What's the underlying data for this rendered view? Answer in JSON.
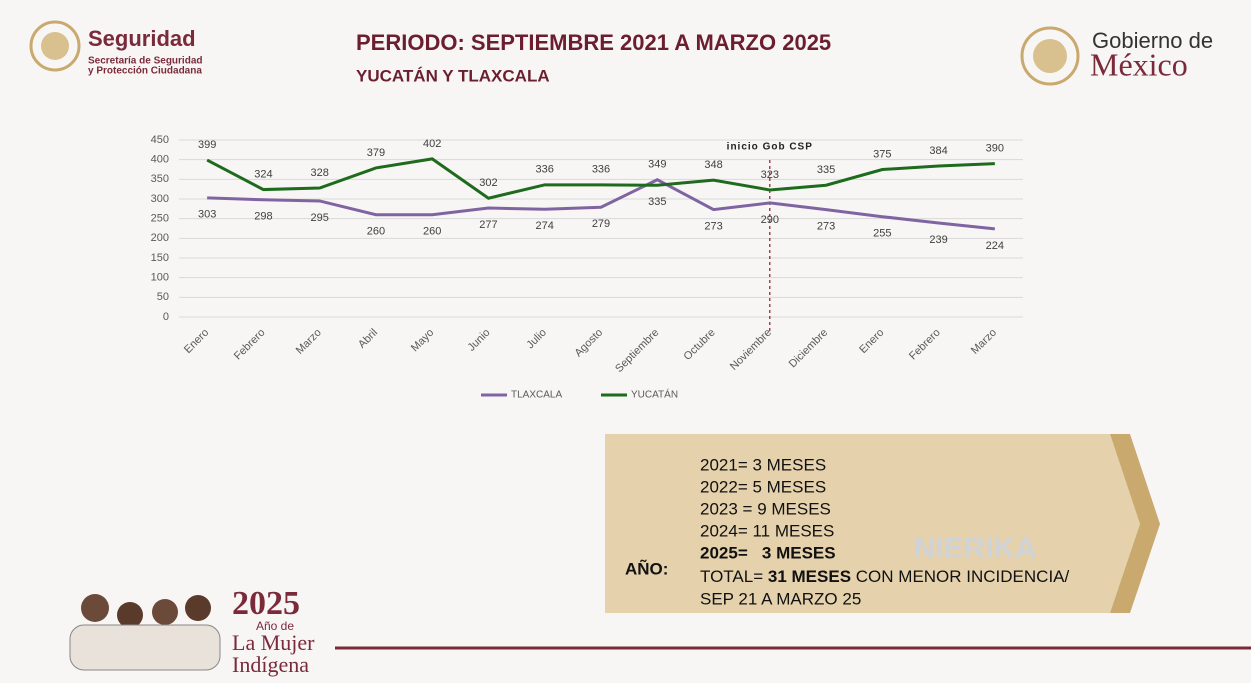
{
  "header": {
    "brand_left": "Seguridad",
    "brand_left_sub": [
      "Secretaría de Seguridad",
      "y Protección Ciudadana"
    ],
    "title": "PERIODO: SEPTIEMBRE 2021 A MARZO 2025",
    "subtitle": "YUCATÁN Y TLAXCALA",
    "brand_right_top": "Gobierno de",
    "brand_right": "México"
  },
  "chart_data": {
    "type": "line",
    "categories": [
      "Enero",
      "Febrero",
      "Marzo",
      "Abril",
      "Mayo",
      "Junio",
      "Julio",
      "Agosto",
      "Septiembre",
      "Octubre",
      "Noviembre",
      "Diciembre",
      "Enero",
      "Febrero",
      "Marzo"
    ],
    "series": [
      {
        "name": "TLAXCALA",
        "color": "#8064a2",
        "values": [
          303,
          298,
          295,
          260,
          260,
          277,
          274,
          279,
          349,
          273,
          290,
          273,
          255,
          239,
          224
        ]
      },
      {
        "name": "YUCATÁN",
        "color": "#1e6b1e",
        "values": [
          399,
          324,
          328,
          379,
          402,
          302,
          336,
          336,
          335,
          348,
          323,
          335,
          375,
          384,
          390
        ]
      }
    ],
    "ylim": [
      0,
      450
    ],
    "yticks": [
      0,
      50,
      100,
      150,
      200,
      250,
      300,
      350,
      400,
      450
    ],
    "grid": true,
    "legend": "bottom",
    "annotation": {
      "text": "inicio Gob CSP",
      "at": "Noviembre"
    }
  },
  "summary": {
    "lines": [
      "2021= 3 MESES",
      "2022= 5 MESES",
      "2023 = 9 MESES",
      "2024= 11 MESES"
    ],
    "bold_line": "2025=   3 MESES",
    "total": {
      "label": "TOTAL=",
      "bold": "31 MESES",
      "rest": "CON MENOR INCIDENCIA/"
    },
    "range": "SEP 21 A MARZO 25",
    "label": "AÑO:",
    "watermark": "NIERIKA"
  },
  "footer": {
    "year": "2025",
    "line1": "Año de",
    "line2": "La Mujer",
    "line3": "Indígena"
  }
}
